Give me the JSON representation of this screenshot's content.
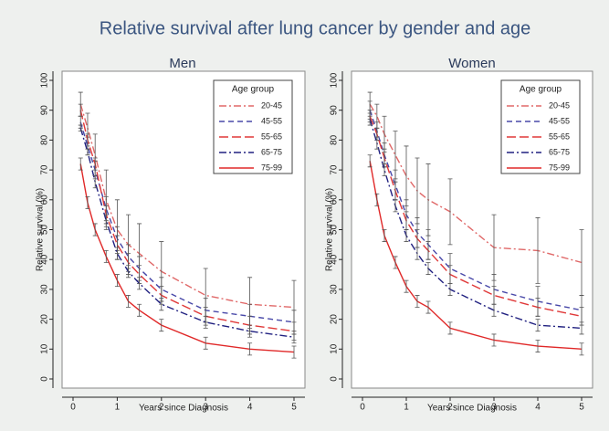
{
  "title": "Relative survival after lung cancer by gender and age",
  "chart_data": [
    {
      "type": "line",
      "title": "Men",
      "x_label": "Years since Diagnosis",
      "y_label": "Relative survival (%)",
      "legend_title": "Age group",
      "legend": "upper-right",
      "x": [
        0.17,
        0.33,
        0.5,
        0.75,
        1,
        1.25,
        1.5,
        2,
        3,
        4,
        5
      ],
      "xlim": [
        0,
        5
      ],
      "xticks": [
        0,
        1,
        2,
        3,
        4,
        5
      ],
      "ylim": [
        0,
        100
      ],
      "yticks": [
        0,
        10,
        20,
        30,
        40,
        50,
        60,
        70,
        80,
        90,
        100
      ],
      "series": [
        {
          "name": "20-45",
          "color": "#e06868",
          "dash": "dash-dot",
          "values": [
            92,
            84,
            75,
            60,
            50,
            45,
            42,
            36,
            28,
            25,
            24
          ],
          "errors": [
            4,
            5,
            7,
            10,
            10,
            10,
            10,
            10,
            9,
            9,
            9
          ]
        },
        {
          "name": "45-55",
          "color": "#4848a8",
          "dash": "dash",
          "values": [
            86,
            78,
            70,
            57,
            47,
            41,
            37,
            30,
            23,
            21,
            19
          ],
          "errors": [
            2,
            3,
            3,
            4,
            4,
            4,
            4,
            4,
            4,
            4,
            4
          ]
        },
        {
          "name": "55-65",
          "color": "#e03838",
          "dash": "long-dash",
          "values": [
            90,
            80,
            72,
            55,
            45,
            39,
            35,
            28,
            21,
            18,
            16
          ],
          "errors": [
            2,
            2,
            2,
            3,
            3,
            3,
            3,
            3,
            3,
            3,
            3
          ]
        },
        {
          "name": "65-75",
          "color": "#202080",
          "dash": "dash-dot",
          "values": [
            84,
            76,
            66,
            53,
            42,
            36,
            32,
            25,
            19,
            16,
            14
          ],
          "errors": [
            1,
            1,
            2,
            2,
            2,
            2,
            2,
            2,
            2,
            2,
            2
          ]
        },
        {
          "name": "75-99",
          "color": "#e02828",
          "dash": "solid",
          "values": [
            72,
            59,
            50,
            41,
            33,
            26,
            23,
            18,
            12,
            10,
            9
          ],
          "errors": [
            2,
            2,
            2,
            2,
            2,
            2,
            2,
            2,
            2,
            2,
            2
          ]
        }
      ]
    },
    {
      "type": "line",
      "title": "Women",
      "x_label": "Years since Diagnosis",
      "y_label": "Relative survival (%)",
      "legend_title": "Age group",
      "legend": "upper-right",
      "x": [
        0.17,
        0.33,
        0.5,
        0.75,
        1,
        1.25,
        1.5,
        2,
        3,
        4,
        5
      ],
      "xlim": [
        0,
        5
      ],
      "xticks": [
        0,
        1,
        2,
        3,
        4,
        5
      ],
      "ylim": [
        0,
        100
      ],
      "yticks": [
        0,
        10,
        20,
        30,
        40,
        50,
        60,
        70,
        80,
        90,
        100
      ],
      "series": [
        {
          "name": "20-45",
          "color": "#e06868",
          "dash": "dash-dot",
          "values": [
            92,
            88,
            82,
            75,
            68,
            63,
            60,
            56,
            44,
            43,
            39
          ],
          "errors": [
            4,
            4,
            6,
            8,
            10,
            11,
            12,
            11,
            11,
            11,
            11
          ]
        },
        {
          "name": "45-55",
          "color": "#4848a8",
          "dash": "dash",
          "values": [
            90,
            83,
            75,
            65,
            55,
            49,
            45,
            37,
            30,
            26,
            23
          ],
          "errors": [
            3,
            3,
            4,
            5,
            5,
            5,
            5,
            5,
            5,
            5,
            5
          ]
        },
        {
          "name": "55-65",
          "color": "#e03838",
          "dash": "long-dash",
          "values": [
            88,
            82,
            74,
            63,
            53,
            47,
            43,
            35,
            28,
            24,
            21
          ],
          "errors": [
            2,
            2,
            3,
            3,
            3,
            3,
            3,
            3,
            3,
            3,
            3
          ]
        },
        {
          "name": "65-75",
          "color": "#202080",
          "dash": "dash-dot",
          "values": [
            87,
            79,
            70,
            58,
            48,
            42,
            37,
            30,
            23,
            18,
            17
          ],
          "errors": [
            2,
            2,
            2,
            2,
            2,
            2,
            2,
            2,
            2,
            2,
            2
          ]
        },
        {
          "name": "75-99",
          "color": "#e02828",
          "dash": "solid",
          "values": [
            73,
            60,
            48,
            39,
            31,
            26,
            24,
            17,
            13,
            11,
            10
          ],
          "errors": [
            2,
            2,
            2,
            2,
            2,
            2,
            2,
            2,
            2,
            2,
            2
          ]
        }
      ]
    }
  ]
}
